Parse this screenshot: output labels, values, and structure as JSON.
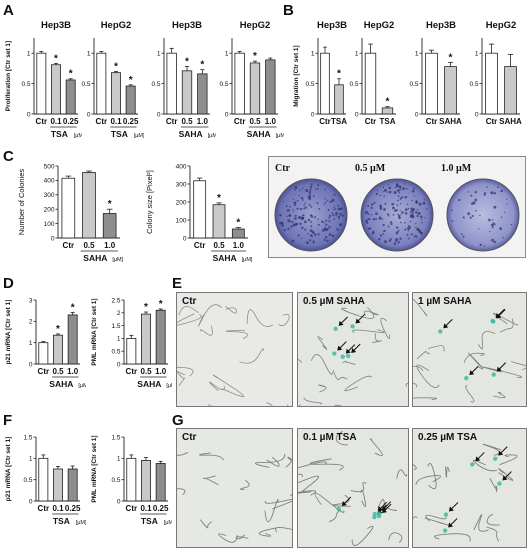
{
  "panel_letters": {
    "A": "A",
    "B": "B",
    "C": "C",
    "D": "D",
    "E": "E",
    "F": "F",
    "G": "G"
  },
  "unit": "[µM]",
  "colors": {
    "ctr": "#ffffff",
    "bar1": "#c9c9c9",
    "bar2": "#8e8e8e",
    "bar3": "#6e6e6e",
    "stroke": "#222222"
  },
  "colony_panel": {
    "labels": [
      "Ctr",
      "0.5 µM",
      "1.0 µM"
    ]
  },
  "micrographs": {
    "E": {
      "labels": [
        "Ctr",
        "0.5 µM SAHA",
        "1 µM SAHA"
      ]
    },
    "G": {
      "labels": [
        "Ctr",
        "0.1 µM TSA",
        "0.25 µM TSA"
      ]
    }
  },
  "chart_data": [
    {
      "id": "A1",
      "type": "bar",
      "title": "Hep3B",
      "ylabel": "Proliferation [Ctr set 1]",
      "ylim": [
        0,
        1.25
      ],
      "yticks": [
        0,
        0.5,
        1.0
      ],
      "categories": [
        "Ctr",
        "0.1",
        "0.25"
      ],
      "values": [
        1.0,
        0.81,
        0.56
      ],
      "errors": [
        0.03,
        0.02,
        0.02
      ],
      "sig": [
        false,
        true,
        true
      ],
      "group": "TSA"
    },
    {
      "id": "A2",
      "type": "bar",
      "title": "HepG2",
      "ylabel": "",
      "ylim": [
        0,
        1.25
      ],
      "yticks": [
        0,
        0.5,
        1.0
      ],
      "categories": [
        "Ctr",
        "0.1",
        "0.25"
      ],
      "values": [
        1.0,
        0.68,
        0.46
      ],
      "errors": [
        0.03,
        0.02,
        0.02
      ],
      "sig": [
        false,
        true,
        true
      ],
      "group": "TSA"
    },
    {
      "id": "A3",
      "type": "bar",
      "title": "Hep3B",
      "ylabel": "",
      "ylim": [
        0,
        1.25
      ],
      "yticks": [
        0,
        0.5,
        1.0
      ],
      "categories": [
        "Ctr",
        "0.5",
        "1.0"
      ],
      "values": [
        1.0,
        0.71,
        0.66
      ],
      "errors": [
        0.08,
        0.07,
        0.07
      ],
      "sig": [
        false,
        true,
        true
      ],
      "group": "SAHA"
    },
    {
      "id": "A4",
      "type": "bar",
      "title": "HepG2",
      "ylabel": "",
      "ylim": [
        0,
        1.25
      ],
      "yticks": [
        0,
        0.5,
        1.0
      ],
      "categories": [
        "Ctr",
        "0.5",
        "1.0"
      ],
      "values": [
        1.0,
        0.84,
        0.89
      ],
      "errors": [
        0.03,
        0.03,
        0.03
      ],
      "sig": [
        false,
        true,
        false
      ],
      "group": "SAHA"
    },
    {
      "id": "B1",
      "type": "bar",
      "title": "Hep3B",
      "ylabel": "Migration [Ctr set 1]",
      "ylim": [
        0,
        1.25
      ],
      "yticks": [
        0,
        0.5,
        1.0
      ],
      "categories": [
        "Ctr",
        "TSA"
      ],
      "values": [
        1.0,
        0.48
      ],
      "errors": [
        0.1,
        0.1
      ],
      "sig": [
        false,
        true
      ],
      "group": ""
    },
    {
      "id": "B2",
      "type": "bar",
      "title": "HepG2",
      "ylabel": "",
      "ylim": [
        0,
        1.25
      ],
      "yticks": [
        0,
        0.5,
        1.0
      ],
      "categories": [
        "Ctr",
        "TSA"
      ],
      "values": [
        1.0,
        0.1
      ],
      "errors": [
        0.15,
        0.02
      ],
      "sig": [
        false,
        true
      ],
      "group": ""
    },
    {
      "id": "B3",
      "type": "bar",
      "title": "Hep3B",
      "ylabel": "",
      "ylim": [
        0,
        1.25
      ],
      "yticks": [
        0,
        0.5,
        1.0
      ],
      "categories": [
        "Ctr",
        "SAHA"
      ],
      "values": [
        1.0,
        0.78
      ],
      "errors": [
        0.05,
        0.07
      ],
      "sig": [
        false,
        true
      ],
      "group": ""
    },
    {
      "id": "B4",
      "type": "bar",
      "title": "HepG2",
      "ylabel": "",
      "ylim": [
        0,
        1.25
      ],
      "yticks": [
        0,
        0.5,
        1.0
      ],
      "categories": [
        "Ctr",
        "SAHA"
      ],
      "values": [
        1.0,
        0.78
      ],
      "errors": [
        0.15,
        0.2
      ],
      "sig": [
        false,
        false
      ],
      "group": ""
    },
    {
      "id": "C1",
      "type": "bar",
      "title": "",
      "ylabel": "Number of Colonies",
      "ylim": [
        0,
        500
      ],
      "yticks": [
        0,
        100,
        200,
        300,
        400,
        500
      ],
      "categories": [
        "Ctr",
        "0.5",
        "1.0"
      ],
      "values": [
        415,
        455,
        170
      ],
      "errors": [
        15,
        10,
        30
      ],
      "sig": [
        false,
        false,
        true
      ],
      "group": "SAHA"
    },
    {
      "id": "C2",
      "type": "bar",
      "title": "",
      "ylabel": "Colony size [Pixel²]",
      "ylim": [
        0,
        400
      ],
      "yticks": [
        0,
        100,
        200,
        300,
        400
      ],
      "categories": [
        "Ctr",
        "0.5",
        "1.0"
      ],
      "values": [
        318,
        185,
        50
      ],
      "errors": [
        15,
        10,
        8
      ],
      "sig": [
        false,
        true,
        true
      ],
      "group": "SAHA"
    },
    {
      "id": "D1",
      "type": "bar",
      "title": "",
      "ylabel": "p21 mRNA [Ctr set 1]",
      "ylim": [
        0,
        3
      ],
      "yticks": [
        0,
        1,
        2,
        3
      ],
      "categories": [
        "Ctr",
        "0.5",
        "1.0"
      ],
      "values": [
        1.0,
        1.35,
        2.3
      ],
      "errors": [
        0.05,
        0.06,
        0.12
      ],
      "sig": [
        false,
        true,
        true
      ],
      "group": "SAHA"
    },
    {
      "id": "D2",
      "type": "bar",
      "title": "",
      "ylabel": "PML mRNA [Ctr set 1]",
      "ylim": [
        0,
        2.5
      ],
      "yticks": [
        0,
        0.5,
        1.0,
        1.5,
        2.0,
        2.5
      ],
      "categories": [
        "Ctr",
        "0.5",
        "1.0"
      ],
      "values": [
        1.0,
        1.95,
        2.1
      ],
      "errors": [
        0.12,
        0.08,
        0.05
      ],
      "sig": [
        false,
        true,
        true
      ],
      "group": "SAHA"
    },
    {
      "id": "F1",
      "type": "bar",
      "title": "",
      "ylabel": "p21 mRNA [Ctr set 1]",
      "ylim": [
        0,
        1.5
      ],
      "yticks": [
        0,
        0.5,
        1.0,
        1.5
      ],
      "categories": [
        "Ctr",
        "0.1",
        "0.25"
      ],
      "values": [
        1.0,
        0.75,
        0.75
      ],
      "errors": [
        0.08,
        0.06,
        0.07
      ],
      "sig": [
        false,
        false,
        false
      ],
      "group": "TSA"
    },
    {
      "id": "F2",
      "type": "bar",
      "title": "",
      "ylabel": "PML mRNA [Ctr set 1]",
      "ylim": [
        0,
        1.5
      ],
      "yticks": [
        0,
        0.5,
        1.0,
        1.5
      ],
      "categories": [
        "Ctr",
        "0.1",
        "0.25"
      ],
      "values": [
        1.0,
        0.95,
        0.88
      ],
      "errors": [
        0.08,
        0.07,
        0.05
      ],
      "sig": [
        false,
        false,
        false
      ],
      "group": "TSA"
    }
  ]
}
